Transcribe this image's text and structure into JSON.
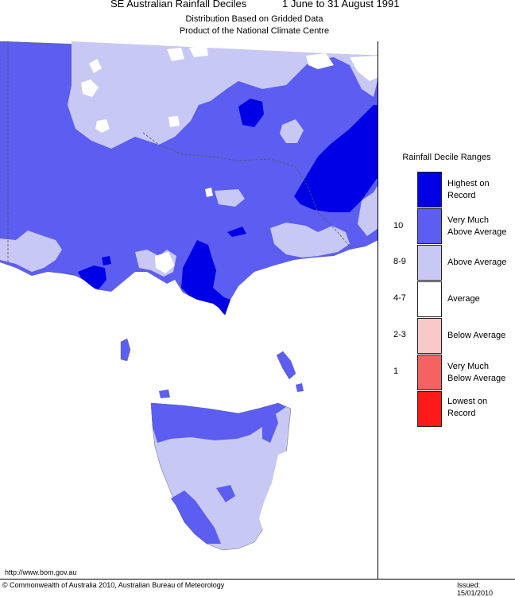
{
  "header": {
    "title_left": "SE Australian Rainfall Deciles",
    "title_right": "1 June to 31 August 1991",
    "subtitle_1": "Distribution Based on Gridded Data",
    "subtitle_2": "Product of the National Climate Centre"
  },
  "legend": {
    "title": "Rainfall Decile Ranges",
    "items": [
      {
        "line1": "Highest on",
        "line2": "Record",
        "decile": "",
        "color": "#0000e6"
      },
      {
        "line1": "Very Much",
        "line2": "Above Average",
        "decile": "10",
        "color": "#5b5ef0"
      },
      {
        "line1": "Above Average",
        "line2": "",
        "decile": "8-9",
        "color": "#c8c8f5"
      },
      {
        "line1": "Average",
        "line2": "",
        "decile": "4-7",
        "color": "#ffffff"
      },
      {
        "line1": "Below Average",
        "line2": "",
        "decile": "2-3",
        "color": "#f9c8c8"
      },
      {
        "line1": "Very Much",
        "line2": "Below Average",
        "decile": "1",
        "color": "#f56262"
      },
      {
        "line1": "Lowest on",
        "line2": "Record",
        "decile": "",
        "color": "#ff1a1a"
      }
    ]
  },
  "footer": {
    "url": "http://www.bom.gov.au",
    "copyright": "© Commonwealth of Australia 2010, Australian Bureau of Meteorology",
    "issued": "Issued: 15/01/2010"
  },
  "colors": {
    "highest": "#0000e6",
    "very_much_above": "#5b5ef0",
    "above": "#c8c8f5",
    "average": "#ffffff",
    "boundary": "#555555"
  }
}
